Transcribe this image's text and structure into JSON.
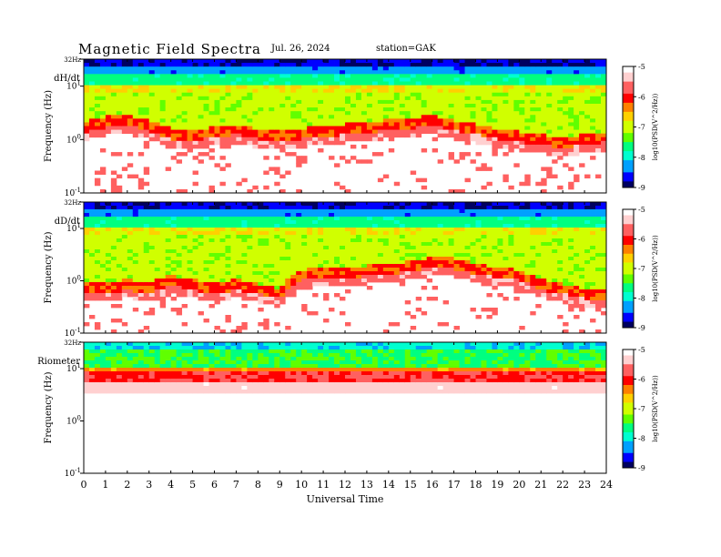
{
  "header": {
    "title": "Magnetic  Field  Spectra",
    "date": "Jul.  26, 2024",
    "station": "station=GAK"
  },
  "colors": {
    "spectrum_scale": [
      "#000060",
      "#0000ff",
      "#00a0ff",
      "#00ffd0",
      "#00ff80",
      "#60ff00",
      "#d0ff00",
      "#ffd000",
      "#ff8000",
      "#ff0000",
      "#ff6060",
      "#ffd0d0",
      "#ffffff"
    ]
  },
  "chart_data": [
    {
      "type": "heatmap",
      "panel_label": "dH/dt",
      "ylabel": "Frequency  (Hz)",
      "y_ticks": [
        "32Hz",
        "10^1",
        "10^0",
        "10^-1"
      ],
      "y_scale": "log",
      "ylim": [
        0.1,
        32
      ],
      "xlim": [
        0,
        24
      ],
      "colorbar_label": "log10(PSD(V^2/Hz))",
      "colorbar_ticks": [
        "-5",
        "-6",
        "-7",
        "-8",
        "-9"
      ],
      "colorbar_range": [
        -9,
        -5
      ],
      "boundary_freq_by_hour": [
        1.2,
        1.5,
        1.6,
        1.3,
        0.9,
        0.8,
        1.0,
        1.1,
        0.9,
        0.8,
        0.9,
        1.0,
        1.1,
        1.2,
        1.3,
        1.4,
        1.6,
        1.3,
        1.1,
        0.9,
        0.8,
        0.7,
        0.6,
        0.7,
        0.8
      ]
    },
    {
      "type": "heatmap",
      "panel_label": "dD/dt",
      "ylabel": "Frequency  (Hz)",
      "y_ticks": [
        "32Hz",
        "10^1",
        "10^0",
        "10^-1"
      ],
      "y_scale": "log",
      "ylim": [
        0.1,
        32
      ],
      "xlim": [
        0,
        24
      ],
      "colorbar_label": "log10(PSD(V^2/Hz))",
      "colorbar_ticks": [
        "-5",
        "-6",
        "-7",
        "-8",
        "-9"
      ],
      "colorbar_range": [
        -9,
        -5
      ],
      "boundary_freq_by_hour": [
        0.5,
        0.5,
        0.6,
        0.5,
        0.7,
        0.6,
        0.5,
        0.6,
        0.5,
        0.4,
        0.9,
        1.0,
        1.0,
        1.1,
        1.2,
        1.3,
        1.6,
        1.5,
        1.2,
        1.0,
        0.9,
        0.6,
        0.5,
        0.4,
        0.4
      ]
    },
    {
      "type": "heatmap",
      "panel_label": "Riometer",
      "ylabel": "Frequency  (Hz)",
      "y_ticks": [
        "32Hz",
        "10^1",
        "10^0",
        "10^-1"
      ],
      "y_scale": "log",
      "ylim": [
        0.1,
        32
      ],
      "xlim": [
        0,
        24
      ],
      "xlabel": "Universal Time",
      "x_ticks": [
        "0",
        "1",
        "2",
        "3",
        "4",
        "5",
        "6",
        "7",
        "8",
        "9",
        "10",
        "11",
        "12",
        "13",
        "14",
        "15",
        "16",
        "17",
        "18",
        "19",
        "20",
        "21",
        "22",
        "23",
        "24"
      ],
      "colorbar_label": "log10(PSD(V^2/Hz))",
      "colorbar_ticks": [
        "-5",
        "-6",
        "-7",
        "-8",
        "-9"
      ],
      "colorbar_range": [
        -9,
        -5
      ],
      "boundary_freq_by_hour": [
        4,
        4,
        4,
        4,
        4,
        4,
        4,
        4,
        4,
        4,
        4,
        4,
        4,
        4,
        4,
        4,
        4,
        4,
        4,
        4,
        4,
        4,
        4,
        4,
        4
      ]
    }
  ]
}
